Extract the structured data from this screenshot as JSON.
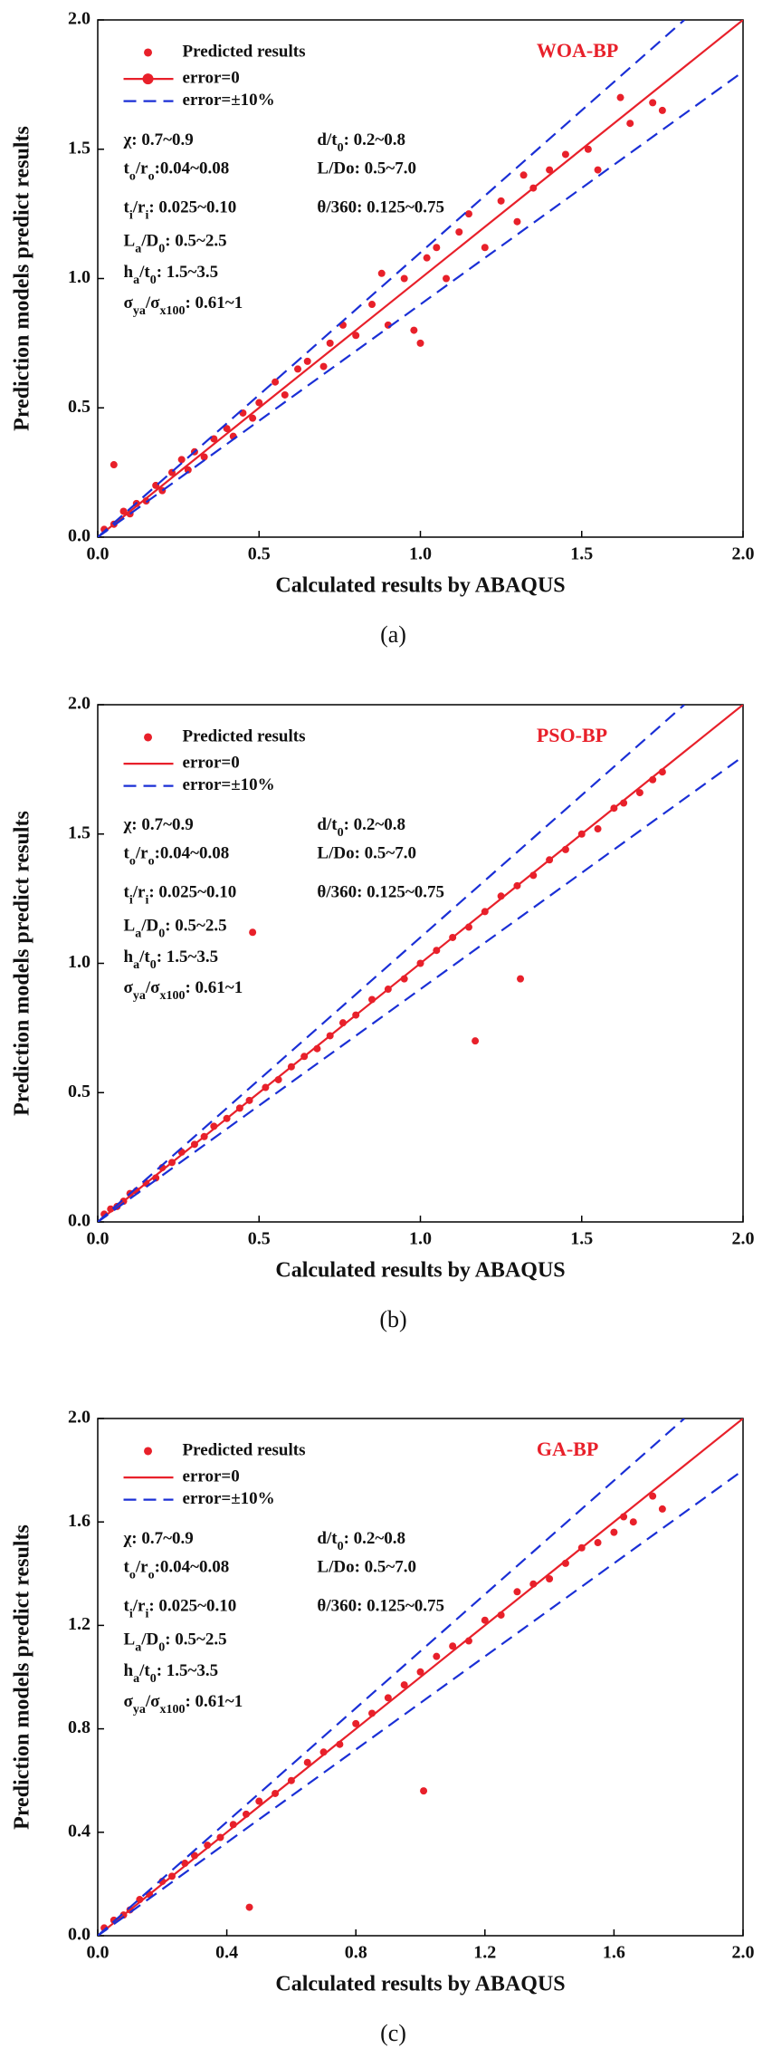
{
  "chart_data": [
    {
      "type": "scatter",
      "title": "WOA-BP",
      "label": "(a)",
      "xlabel": "Calculated results by ABAQUS",
      "ylabel": "Prediction models predict results",
      "xlim": [
        0,
        2
      ],
      "ylim": [
        0,
        2
      ],
      "xticks": [
        {
          "value": 0,
          "label": "0.0"
        },
        0.5,
        {
          "value": 1,
          "label": "1.0"
        },
        1.5,
        {
          "value": 2,
          "label": "2.0"
        }
      ],
      "yticks": [
        {
          "value": 0,
          "label": "0.0"
        },
        0.5,
        {
          "value": 1,
          "label": "1.0"
        },
        1.5,
        {
          "value": 2,
          "label": "2.0"
        }
      ],
      "annotations": [
        [
          "χ: 0.7~0.9"
        ],
        [
          "d/t",
          "0",
          ": 0.2~0.8"
        ],
        [
          "t",
          "o",
          "/r",
          "o",
          ":0.04~0.08"
        ],
        [
          "L/Do: 0.5~7.0"
        ],
        [
          "t",
          "i",
          "/r",
          "i",
          ": 0.025~0.10"
        ],
        [
          "θ/360: 0.125~0.75"
        ],
        [
          "L",
          "a",
          "/D",
          "0",
          ": 0.5~2.5"
        ],
        [
          "h",
          "a",
          "/t",
          "0",
          ": 1.5~3.5"
        ],
        [
          "σ",
          "ya",
          "/σ",
          "x100",
          ": 0.61~1"
        ]
      ],
      "series": [
        {
          "name": "Predicted results",
          "color": "#e8202a",
          "marker": "circle",
          "x": [
            0.02,
            0.05,
            0.05,
            0.08,
            0.1,
            0.12,
            0.15,
            0.18,
            0.2,
            0.23,
            0.26,
            0.28,
            0.3,
            0.33,
            0.36,
            0.4,
            0.42,
            0.45,
            0.48,
            0.5,
            0.55,
            0.58,
            0.62,
            0.65,
            0.7,
            0.72,
            0.76,
            0.8,
            0.85,
            0.88,
            0.9,
            0.95,
            0.98,
            1.0,
            1.02,
            1.05,
            1.08,
            1.12,
            1.15,
            1.2,
            1.25,
            1.3,
            1.32,
            1.35,
            1.4,
            1.45,
            1.52,
            1.55,
            1.62,
            1.65,
            1.72,
            1.75
          ],
          "values": [
            0.03,
            0.05,
            0.28,
            0.1,
            0.09,
            0.13,
            0.14,
            0.2,
            0.18,
            0.25,
            0.3,
            0.26,
            0.33,
            0.31,
            0.38,
            0.42,
            0.39,
            0.48,
            0.46,
            0.52,
            0.6,
            0.55,
            0.65,
            0.68,
            0.66,
            0.75,
            0.82,
            0.78,
            0.9,
            1.02,
            0.82,
            1.0,
            0.8,
            0.75,
            1.08,
            1.12,
            1.0,
            1.18,
            1.25,
            1.12,
            1.3,
            1.22,
            1.4,
            1.35,
            1.42,
            1.48,
            1.5,
            1.42,
            1.7,
            1.6,
            1.68,
            1.65
          ]
        },
        {
          "name": "error=0",
          "color": "#e8202a",
          "line_style": "solid",
          "marker": "circle",
          "x": [
            0,
            2
          ],
          "values": [
            0,
            2
          ]
        },
        {
          "name": "error=±10%",
          "color": "#1a2fd6",
          "line_style": "dashed",
          "x": [
            0,
            1.818,
            null,
            0,
            2
          ],
          "values": [
            0,
            2,
            null,
            0,
            1.8
          ]
        }
      ]
    },
    {
      "type": "scatter",
      "title": "PSO-BP",
      "label": "(b)",
      "xlabel": "Calculated results by ABAQUS",
      "ylabel": "Prediction models predict results",
      "xlim": [
        0,
        2
      ],
      "ylim": [
        0,
        2
      ],
      "xticks": [
        {
          "value": 0,
          "label": "0.0"
        },
        0.5,
        {
          "value": 1,
          "label": "1.0"
        },
        1.5,
        {
          "value": 2,
          "label": "2.0"
        }
      ],
      "yticks": [
        {
          "value": 0,
          "label": "0.0"
        },
        0.5,
        {
          "value": 1,
          "label": "1.0"
        },
        1.5,
        {
          "value": 2,
          "label": "2.0"
        }
      ],
      "annotations": [
        [
          "χ: 0.7~0.9"
        ],
        [
          "d/t",
          "0",
          ": 0.2~0.8"
        ],
        [
          "t",
          "o",
          "/r",
          "o",
          ":0.04~0.08"
        ],
        [
          "L/Do: 0.5~7.0"
        ],
        [
          "t",
          "i",
          "/r",
          "i",
          ": 0.025~0.10"
        ],
        [
          "θ/360: 0.125~0.75"
        ],
        [
          "L",
          "a",
          "/D",
          "0",
          ": 0.5~2.5"
        ],
        [
          "h",
          "a",
          "/t",
          "0",
          ": 1.5~3.5"
        ],
        [
          "σ",
          "ya",
          "/σ",
          "x100",
          ": 0.61~1"
        ]
      ],
      "series": [
        {
          "name": "Predicted results",
          "color": "#e8202a",
          "marker": "circle",
          "x": [
            0.02,
            0.04,
            0.06,
            0.08,
            0.1,
            0.12,
            0.15,
            0.18,
            0.2,
            0.23,
            0.26,
            0.3,
            0.33,
            0.36,
            0.4,
            0.44,
            0.47,
            0.48,
            0.52,
            0.56,
            0.6,
            0.64,
            0.68,
            0.72,
            0.76,
            0.8,
            0.85,
            0.9,
            0.95,
            1.0,
            1.05,
            1.1,
            1.15,
            1.17,
            1.2,
            1.25,
            1.3,
            1.31,
            1.35,
            1.4,
            1.45,
            1.5,
            1.55,
            1.6,
            1.63,
            1.68,
            1.72,
            1.75
          ],
          "values": [
            0.03,
            0.05,
            0.06,
            0.08,
            0.11,
            0.12,
            0.15,
            0.17,
            0.21,
            0.23,
            0.27,
            0.3,
            0.33,
            0.37,
            0.4,
            0.44,
            0.47,
            1.12,
            0.52,
            0.55,
            0.6,
            0.64,
            0.67,
            0.72,
            0.77,
            0.8,
            0.86,
            0.9,
            0.94,
            1.0,
            1.05,
            1.1,
            1.14,
            0.7,
            1.2,
            1.26,
            1.3,
            0.94,
            1.34,
            1.4,
            1.44,
            1.5,
            1.52,
            1.6,
            1.62,
            1.66,
            1.71,
            1.74
          ]
        },
        {
          "name": "error=0",
          "color": "#e8202a",
          "line_style": "solid",
          "x": [
            0,
            2
          ],
          "values": [
            0,
            2
          ]
        },
        {
          "name": "error=±10%",
          "color": "#1a2fd6",
          "line_style": "dashed",
          "x": [
            0,
            1.818,
            null,
            0,
            2
          ],
          "values": [
            0,
            2,
            null,
            0,
            1.8
          ]
        }
      ]
    },
    {
      "type": "scatter",
      "title": "GA-BP",
      "label": "(c)",
      "xlabel": "Calculated results by ABAQUS",
      "ylabel": "Prediction models predict results",
      "xlim": [
        0,
        2
      ],
      "ylim": [
        0,
        2
      ],
      "xticks": [
        {
          "value": 0,
          "label": "0.0"
        },
        0.4,
        0.8,
        1.2,
        1.6,
        {
          "value": 2,
          "label": "2.0"
        }
      ],
      "yticks": [
        {
          "value": 0,
          "label": "0.0"
        },
        0.4,
        0.8,
        1.2,
        1.6,
        {
          "value": 2,
          "label": "2.0"
        }
      ],
      "annotations": [
        [
          "χ: 0.7~0.9"
        ],
        [
          "d/t",
          "0",
          ": 0.2~0.8"
        ],
        [
          "t",
          "o",
          "/r",
          "o",
          ":0.04~0.08"
        ],
        [
          "L/Do: 0.5~7.0"
        ],
        [
          "t",
          "i",
          "/r",
          "i",
          ": 0.025~0.10"
        ],
        [
          "θ/360: 0.125~0.75"
        ],
        [
          "L",
          "a",
          "/D",
          "0",
          ": 0.5~2.5"
        ],
        [
          "h",
          "a",
          "/t",
          "0",
          ": 1.5~3.5"
        ],
        [
          "σ",
          "ya",
          "/σ",
          "x100",
          ": 0.61~1"
        ]
      ],
      "series": [
        {
          "name": "Predicted results",
          "color": "#e8202a",
          "marker": "circle",
          "x": [
            0.02,
            0.05,
            0.08,
            0.1,
            0.13,
            0.16,
            0.2,
            0.23,
            0.27,
            0.3,
            0.34,
            0.38,
            0.42,
            0.46,
            0.47,
            0.5,
            0.55,
            0.6,
            0.65,
            0.7,
            0.75,
            0.8,
            0.85,
            0.9,
            0.95,
            1.0,
            1.01,
            1.05,
            1.1,
            1.15,
            1.2,
            1.25,
            1.3,
            1.35,
            1.4,
            1.45,
            1.5,
            1.55,
            1.6,
            1.63,
            1.66,
            1.72,
            1.75
          ],
          "values": [
            0.03,
            0.06,
            0.08,
            0.1,
            0.14,
            0.16,
            0.21,
            0.23,
            0.28,
            0.31,
            0.35,
            0.38,
            0.43,
            0.47,
            0.11,
            0.52,
            0.55,
            0.6,
            0.67,
            0.71,
            0.74,
            0.82,
            0.86,
            0.92,
            0.97,
            1.02,
            0.56,
            1.08,
            1.12,
            1.14,
            1.22,
            1.24,
            1.33,
            1.36,
            1.38,
            1.44,
            1.5,
            1.52,
            1.56,
            1.62,
            1.6,
            1.7,
            1.65
          ]
        },
        {
          "name": "error=0",
          "color": "#e8202a",
          "line_style": "solid",
          "x": [
            0,
            2
          ],
          "values": [
            0,
            2
          ]
        },
        {
          "name": "error=±10%",
          "color": "#1a2fd6",
          "line_style": "dashed",
          "x": [
            0,
            1.818,
            null,
            0,
            2
          ],
          "values": [
            0,
            2,
            null,
            0,
            1.8
          ]
        }
      ]
    }
  ]
}
